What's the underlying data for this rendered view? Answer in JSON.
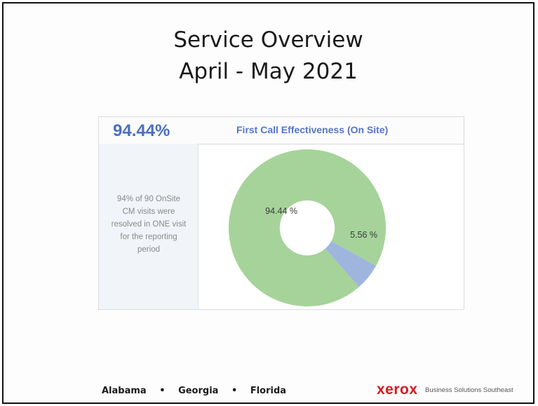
{
  "slide": {
    "title_line1": "Service Overview",
    "title_line2": "April - May 2021"
  },
  "panel": {
    "kpi_value": "94.44%",
    "chart_title": "First Call Effectiveness (On Site)",
    "summary_lines": [
      "94% of 90 OnSite",
      "CM visits were",
      "resolved in ONE visit",
      "for the reporting",
      "period"
    ]
  },
  "chart_data": {
    "type": "pie",
    "title": "First Call Effectiveness (On Site)",
    "hole": 0.35,
    "slices": [
      {
        "value": 94.44,
        "label": "94.44 %",
        "color": "#a6d39a"
      },
      {
        "value": 5.56,
        "label": "5.56 %",
        "color": "#9fb5dd"
      }
    ]
  },
  "footer": {
    "states": [
      "Alabama",
      "Georgia",
      "Florida"
    ],
    "separator": "•",
    "brand_logo": "xerox",
    "brand_tagline": "Business Solutions Southeast"
  },
  "colors": {
    "kpi_blue": "#4a6fc0",
    "brand_red": "#d71920"
  }
}
